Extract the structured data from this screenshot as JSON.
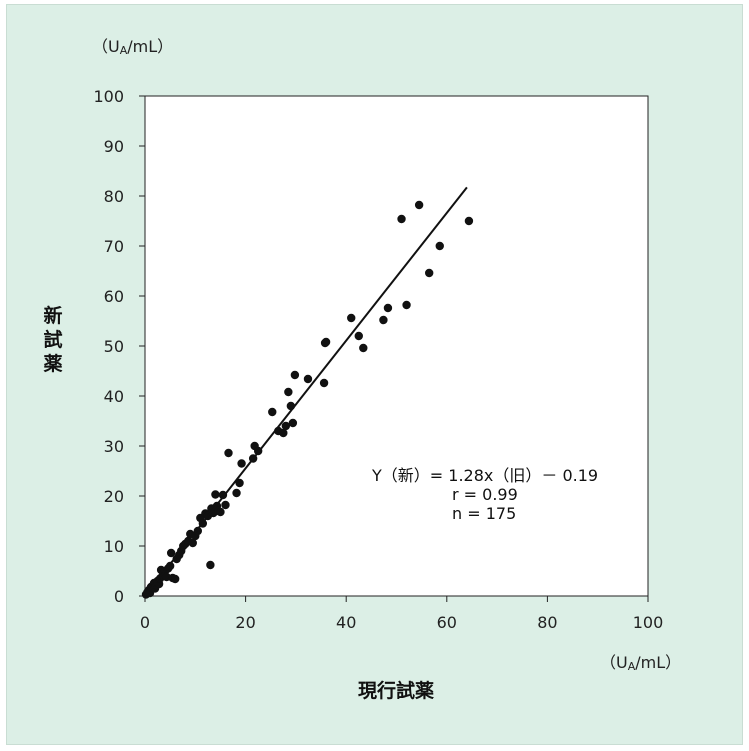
{
  "chart_data": {
    "type": "scatter",
    "title": "",
    "xlabel": "現行試薬",
    "ylabel": "新試薬",
    "x_unit": "（U",
    "x_unit_sub": "A",
    "x_unit_tail": "/mL）",
    "y_unit": "（U",
    "y_unit_sub": "A",
    "y_unit_tail": "/mL）",
    "xlim": [
      0,
      100
    ],
    "ylim": [
      0,
      100
    ],
    "x_ticks": [
      "0",
      "20",
      "40",
      "60",
      "80",
      "100"
    ],
    "y_ticks": [
      "0",
      "10",
      "20",
      "30",
      "40",
      "50",
      "60",
      "70",
      "80",
      "90",
      "100"
    ],
    "grid": false,
    "regression": {
      "slope": 1.28,
      "intercept": -0.19,
      "x_range": [
        0,
        64
      ]
    },
    "annotation": [
      "Y（新）= 1.28x（旧）－ 0.19",
      "r = 0.99",
      "n = 175"
    ],
    "points": [
      [
        0.2,
        0.3
      ],
      [
        0.5,
        0.8
      ],
      [
        0.8,
        1.2
      ],
      [
        1.0,
        0.6
      ],
      [
        1.2,
        1.8
      ],
      [
        1.5,
        2.0
      ],
      [
        1.8,
        2.6
      ],
      [
        2.0,
        1.5
      ],
      [
        2.2,
        2.2
      ],
      [
        2.5,
        3.0
      ],
      [
        2.8,
        2.4
      ],
      [
        3.0,
        3.5
      ],
      [
        3.2,
        5.2
      ],
      [
        3.5,
        4.0
      ],
      [
        3.8,
        4.6
      ],
      [
        4.0,
        5.0
      ],
      [
        4.3,
        3.8
      ],
      [
        4.6,
        5.5
      ],
      [
        5.0,
        6.0
      ],
      [
        5.2,
        8.6
      ],
      [
        5.5,
        3.6
      ],
      [
        6.0,
        3.4
      ],
      [
        6.3,
        7.4
      ],
      [
        6.8,
        8.2
      ],
      [
        7.2,
        9.0
      ],
      [
        7.6,
        10.0
      ],
      [
        8.0,
        10.4
      ],
      [
        8.6,
        11.0
      ],
      [
        9.0,
        12.4
      ],
      [
        9.5,
        10.6
      ],
      [
        10.0,
        12.0
      ],
      [
        10.5,
        13.0
      ],
      [
        11.0,
        15.6
      ],
      [
        11.5,
        14.5
      ],
      [
        12.0,
        16.5
      ],
      [
        12.5,
        16.0
      ],
      [
        13.0,
        6.2
      ],
      [
        13.2,
        17.5
      ],
      [
        13.6,
        16.6
      ],
      [
        14.0,
        20.3
      ],
      [
        14.3,
        18.0
      ],
      [
        14.6,
        17.0
      ],
      [
        15.0,
        16.8
      ],
      [
        15.5,
        20.2
      ],
      [
        16.0,
        18.2
      ],
      [
        16.6,
        28.6
      ],
      [
        18.2,
        20.6
      ],
      [
        18.8,
        22.6
      ],
      [
        19.2,
        26.5
      ],
      [
        21.5,
        27.5
      ],
      [
        21.8,
        30.0
      ],
      [
        22.5,
        29.0
      ],
      [
        25.3,
        36.8
      ],
      [
        26.5,
        33.0
      ],
      [
        27.5,
        32.6
      ],
      [
        28.0,
        34.0
      ],
      [
        28.5,
        40.8
      ],
      [
        29.0,
        38.0
      ],
      [
        29.4,
        34.6
      ],
      [
        29.8,
        44.2
      ],
      [
        32.4,
        43.4
      ],
      [
        35.6,
        42.6
      ],
      [
        35.8,
        50.6
      ],
      [
        36.0,
        50.8
      ],
      [
        41.0,
        55.6
      ],
      [
        42.5,
        52.0
      ],
      [
        43.4,
        49.6
      ],
      [
        47.4,
        55.2
      ],
      [
        48.3,
        57.6
      ],
      [
        51.0,
        75.4
      ],
      [
        52.0,
        58.2
      ],
      [
        54.5,
        78.2
      ],
      [
        56.5,
        64.6
      ],
      [
        58.6,
        70.0
      ],
      [
        64.4,
        75.0
      ]
    ],
    "colors": {
      "background": "#dcefe6",
      "plot_bg": "#ffffff",
      "marker": "#111111",
      "line": "#111111"
    }
  }
}
